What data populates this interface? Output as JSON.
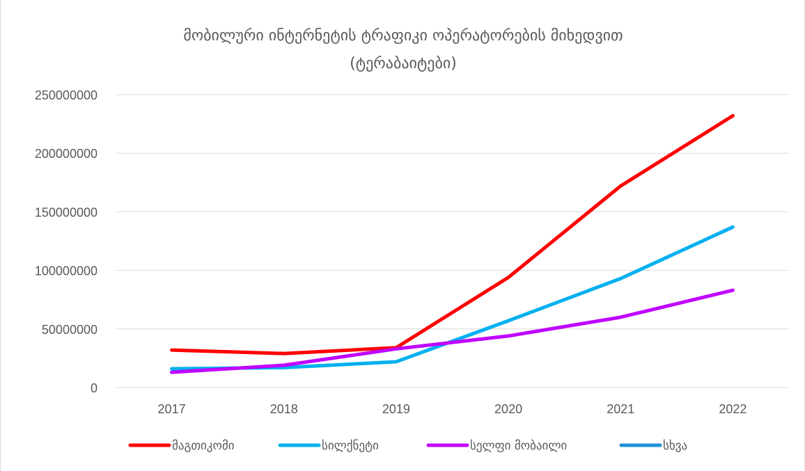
{
  "chart_data": {
    "type": "line",
    "title_line1": "მობილური ინტერნეტის ტრაფიკი ოპერატორების მიხედვით",
    "title_line2": "(ტერაბაიტები)",
    "xlabel": "",
    "ylabel": "",
    "categories": [
      "2017",
      "2018",
      "2019",
      "2020",
      "2021",
      "2022"
    ],
    "ylim": [
      0,
      250000000
    ],
    "yticks": [
      0,
      50000000,
      100000000,
      150000000,
      200000000,
      250000000
    ],
    "ytick_labels": [
      "0",
      "50000000",
      "100000000",
      "150000000",
      "200000000",
      "250000000"
    ],
    "grid": true,
    "legend_position": "bottom",
    "series": [
      {
        "name": "მაგთიკომი",
        "color": "#ff0000",
        "values": [
          32000000,
          29000000,
          34000000,
          94000000,
          172000000,
          232000000
        ]
      },
      {
        "name": "სილქნეტი",
        "color": "#00b0f0",
        "values": [
          16000000,
          17000000,
          22000000,
          57000000,
          93000000,
          137000000
        ]
      },
      {
        "name": "სელფი მობაილი",
        "color": "#c000ff",
        "values": [
          13000000,
          19000000,
          33000000,
          44000000,
          60000000,
          83000000
        ]
      },
      {
        "name": "სხვა",
        "color": "#1b91d8",
        "values": [
          null,
          null,
          null,
          null,
          null,
          null
        ]
      }
    ]
  }
}
